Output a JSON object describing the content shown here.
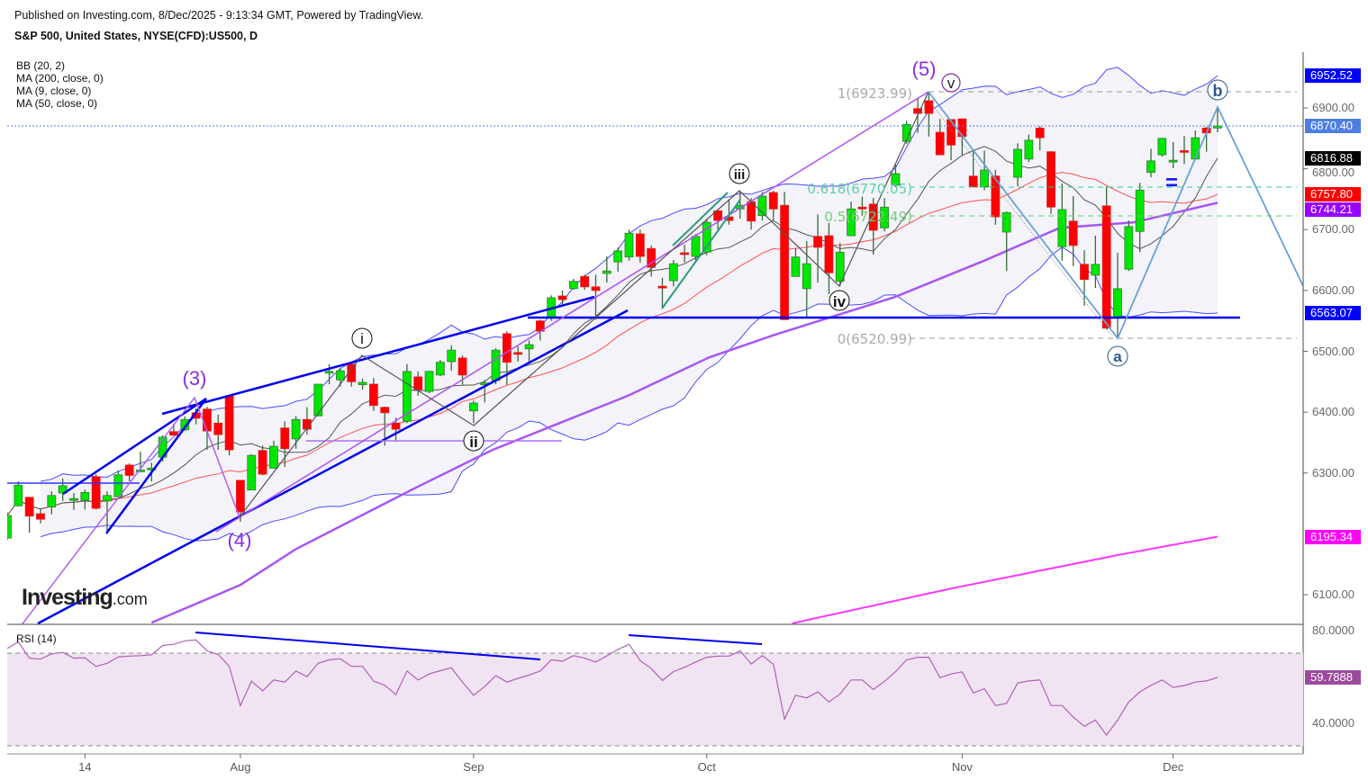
{
  "header": {
    "published": "Published on Investing.com, 8/Dec/2025 - 9:13:34 GMT, Powered by TradingView.",
    "symbol": "S&P 500, United States, NYSE(CFD):US500, D"
  },
  "legend": [
    "BB (20, 2)",
    "MA (200, close, 0)",
    "MA (9, close, 0)",
    "MA (50, close, 0)"
  ],
  "rsi_label": "RSI (14)",
  "logo": {
    "main": "Investing",
    "suffix": ".com"
  },
  "colors": {
    "up": "#00e600",
    "down": "#ff0000",
    "bb": "#4a4aff",
    "bb_fill": "#f3f3f9",
    "bb_basis": "#ff5050",
    "ma9": "#555555",
    "ma50": "#a855f7",
    "ma200": "#ff33ff",
    "rsi": "#b060b8",
    "rsi_fill": "#f1e4f2"
  },
  "price_axis": {
    "ticks": [
      "6900.00",
      "6800.00",
      "6700.00",
      "6600.00",
      "6500.00",
      "6400.00",
      "6300.00",
      "6100.00"
    ],
    "tick_values": [
      6900,
      6800,
      6700,
      6600,
      6500,
      6400,
      6300,
      6100
    ],
    "tags": [
      {
        "label": "6952.52",
        "value": 6952.52,
        "color": "#0000ff",
        "name": "bb-upper"
      },
      {
        "label": "6870.40",
        "value": 6870.4,
        "color": "#4f7ee3",
        "name": "last-price"
      },
      {
        "label": "6816.88",
        "value": 6816.88,
        "color": "#000000",
        "name": "ma9"
      },
      {
        "label": "6757.80",
        "value": 6757.8,
        "color": "#ff0000",
        "name": "bb-basis"
      },
      {
        "label": "6744.21",
        "value": 6744.21,
        "color": "#9900ff",
        "name": "ma50"
      },
      {
        "label": "6563.07",
        "value": 6563.07,
        "color": "#0000ff",
        "name": "bb-lower"
      },
      {
        "label": "6195.34",
        "value": 6195.34,
        "color": "#ff00ff",
        "name": "ma200"
      }
    ]
  },
  "rsi_axis": {
    "ticks": [
      "80.0000",
      "40.0000"
    ],
    "tick_values": [
      80,
      40
    ],
    "tag": {
      "label": "59.7888",
      "value": 59.7888,
      "color": "#9c4a9c"
    }
  },
  "x_axis": {
    "labels": [
      "14",
      "Aug",
      "Sep",
      "Oct",
      "Nov",
      "Dec"
    ],
    "label_index": [
      7,
      21,
      42,
      63,
      86,
      105
    ]
  },
  "annotations": {
    "waves": {
      "w3": "(3)",
      "w4": "(4)",
      "w5": "(5)",
      "i": "i",
      "ii": "ii",
      "iii": "iii",
      "iv": "iv",
      "v": "v",
      "a": "a",
      "b": "b",
      "eq": "="
    },
    "fib": {
      "f1": "1(6923.99)",
      "f618": "0.618(6770.05)",
      "f05": "0.5(6722.49)",
      "f0": "0(6520.99)"
    }
  },
  "chart_data": {
    "type": "candlestick",
    "title": "S&P 500, United States, NYSE(CFD):US500, D",
    "ylim": [
      6053,
      7000
    ],
    "rsi_ylim": [
      27,
      82
    ],
    "ohlc_fields": [
      "open",
      "high",
      "low",
      "close"
    ],
    "ohlc": [
      [
        6193,
        6235,
        6190,
        6230
      ],
      [
        6246,
        6286,
        6245,
        6280
      ],
      [
        6260,
        6261,
        6202,
        6229
      ],
      [
        6233,
        6242,
        6217,
        6224
      ],
      [
        6244,
        6270,
        6232,
        6263
      ],
      [
        6267,
        6291,
        6254,
        6279
      ],
      [
        6255,
        6267,
        6239,
        6258
      ],
      [
        6255,
        6273,
        6240,
        6268
      ],
      [
        6294,
        6298,
        6240,
        6242
      ],
      [
        6254,
        6270,
        6202,
        6263
      ],
      [
        6261,
        6304,
        6260,
        6297
      ],
      [
        6313,
        6316,
        6286,
        6296
      ],
      [
        6302,
        6335,
        6302,
        6305
      ],
      [
        6305,
        6317,
        6286,
        6308
      ],
      [
        6326,
        6362,
        6319,
        6359
      ],
      [
        6368,
        6381,
        6362,
        6362
      ],
      [
        6371,
        6393,
        6369,
        6388
      ],
      [
        6399,
        6406,
        6380,
        6390
      ],
      [
        6405,
        6409,
        6338,
        6369
      ],
      [
        6382,
        6396,
        6338,
        6363
      ],
      [
        6427,
        6427,
        6329,
        6338
      ],
      [
        6288,
        6288,
        6220,
        6236
      ],
      [
        6272,
        6331,
        6272,
        6329
      ],
      [
        6337,
        6345,
        6296,
        6298
      ],
      [
        6308,
        6353,
        6307,
        6344
      ],
      [
        6374,
        6385,
        6310,
        6340
      ],
      [
        6356,
        6394,
        6340,
        6388
      ],
      [
        6388,
        6408,
        6363,
        6372
      ],
      [
        6394,
        6446,
        6393,
        6446
      ],
      [
        6464,
        6479,
        6446,
        6467
      ],
      [
        6453,
        6473,
        6442,
        6468
      ],
      [
        6479,
        6482,
        6442,
        6450
      ],
      [
        6445,
        6455,
        6437,
        6449
      ],
      [
        6446,
        6456,
        6402,
        6411
      ],
      [
        6408,
        6409,
        6345,
        6399
      ],
      [
        6382,
        6391,
        6353,
        6372
      ],
      [
        6385,
        6479,
        6382,
        6467
      ],
      [
        6458,
        6467,
        6427,
        6437
      ],
      [
        6434,
        6468,
        6431,
        6467
      ],
      [
        6461,
        6486,
        6459,
        6482
      ],
      [
        6483,
        6510,
        6468,
        6502
      ],
      [
        6489,
        6493,
        6445,
        6461
      ],
      [
        6402,
        6419,
        6382,
        6415
      ],
      [
        6445,
        6453,
        6416,
        6448
      ],
      [
        6452,
        6505,
        6446,
        6502
      ],
      [
        6529,
        6533,
        6445,
        6482
      ],
      [
        6498,
        6508,
        6483,
        6495
      ],
      [
        6504,
        6518,
        6483,
        6511
      ],
      [
        6550,
        6552,
        6518,
        6533
      ],
      [
        6555,
        6592,
        6550,
        6588
      ],
      [
        6591,
        6600,
        6577,
        6585
      ],
      [
        6603,
        6619,
        6601,
        6615
      ],
      [
        6623,
        6626,
        6601,
        6606
      ],
      [
        6606,
        6626,
        6552,
        6600
      ],
      [
        6628,
        6656,
        6613,
        6632
      ],
      [
        6647,
        6671,
        6631,
        6665
      ],
      [
        6655,
        6700,
        6649,
        6694
      ],
      [
        6693,
        6700,
        6646,
        6656
      ],
      [
        6669,
        6674,
        6623,
        6638
      ],
      [
        6607,
        6621,
        6570,
        6606
      ],
      [
        6616,
        6650,
        6607,
        6644
      ],
      [
        6662,
        6675,
        6646,
        6660
      ],
      [
        6656,
        6693,
        6649,
        6689
      ],
      [
        6663,
        6718,
        6658,
        6712
      ],
      [
        6731,
        6734,
        6700,
        6715
      ],
      [
        6721,
        6749,
        6708,
        6715
      ],
      [
        6734,
        6762,
        6718,
        6740
      ],
      [
        6746,
        6752,
        6700,
        6714
      ],
      [
        6723,
        6762,
        6715,
        6755
      ],
      [
        6761,
        6764,
        6715,
        6734
      ],
      [
        6740,
        6762,
        6552,
        6552
      ],
      [
        6623,
        6669,
        6623,
        6655
      ],
      [
        6603,
        6681,
        6557,
        6644
      ],
      [
        6689,
        6725,
        6613,
        6671
      ],
      [
        6690,
        6711,
        6594,
        6629
      ],
      [
        6615,
        6678,
        6607,
        6663
      ],
      [
        6690,
        6746,
        6690,
        6734
      ],
      [
        6737,
        6754,
        6723,
        6734
      ],
      [
        6742,
        6752,
        6659,
        6699
      ],
      [
        6703,
        6752,
        6697,
        6737
      ],
      [
        6773,
        6807,
        6770,
        6792
      ],
      [
        6845,
        6879,
        6841,
        6873
      ],
      [
        6899,
        6915,
        6859,
        6891
      ],
      [
        6912,
        6924,
        6853,
        6891
      ],
      [
        6860,
        6882,
        6823,
        6823
      ],
      [
        6881,
        6881,
        6814,
        6839
      ],
      [
        6882,
        6882,
        6823,
        6853
      ],
      [
        6788,
        6829,
        6770,
        6770
      ],
      [
        6770,
        6830,
        6765,
        6798
      ],
      [
        6788,
        6798,
        6708,
        6721
      ],
      [
        6696,
        6730,
        6632,
        6728
      ],
      [
        6786,
        6842,
        6771,
        6832
      ],
      [
        6816,
        6856,
        6811,
        6847
      ],
      [
        6867,
        6870,
        6830,
        6851
      ],
      [
        6828,
        6829,
        6726,
        6737
      ],
      [
        6672,
        6776,
        6649,
        6733
      ],
      [
        6714,
        6755,
        6640,
        6674
      ],
      [
        6643,
        6666,
        6575,
        6618
      ],
      [
        6625,
        6690,
        6604,
        6643
      ],
      [
        6739,
        6771,
        6536,
        6538
      ],
      [
        6555,
        6662,
        6521,
        6603
      ],
      [
        6635,
        6715,
        6632,
        6705
      ],
      [
        6697,
        6777,
        6663,
        6765
      ],
      [
        6794,
        6833,
        6786,
        6813
      ],
      [
        6823,
        6851,
        6820,
        6850
      ],
      [
        6813,
        6844,
        6801,
        6814
      ],
      [
        6830,
        6854,
        6808,
        6829
      ],
      [
        6816,
        6863,
        6814,
        6851
      ],
      [
        6867,
        6869,
        6828,
        6859
      ],
      [
        6867,
        6900,
        6860,
        6870.4
      ]
    ],
    "ma50_points": [
      [
        13,
        6054
      ],
      [
        21,
        6116
      ],
      [
        26,
        6175
      ],
      [
        36.7,
        6275
      ],
      [
        43.7,
        6338
      ],
      [
        55.9,
        6427
      ],
      [
        63.2,
        6490
      ],
      [
        69.1,
        6527
      ],
      [
        79.9,
        6589
      ],
      [
        88,
        6649
      ],
      [
        94.8,
        6703
      ],
      [
        101.5,
        6712
      ],
      [
        109,
        6744.21
      ]
    ],
    "ma200_points": [
      [
        70.7,
        6053
      ],
      [
        85,
        6110
      ],
      [
        100,
        6165
      ],
      [
        109,
        6195.34
      ]
    ],
    "rsi": [
      72.3,
      75.1,
      68.1,
      67.7,
      70,
      70.6,
      68.1,
      68.3,
      64.6,
      65.9,
      68.7,
      69.0,
      69.2,
      69.6,
      73.6,
      74.1,
      75.6,
      76.0,
      71.3,
      69.7,
      64.6,
      47.6,
      58.2,
      54.0,
      58.7,
      57.8,
      62.6,
      60.1,
      65.9,
      67.4,
      67.9,
      64.6,
      64.6,
      58.2,
      56.4,
      52.4,
      62.6,
      58.7,
      61.3,
      62.7,
      64.0,
      57.8,
      52.1,
      55.9,
      60.6,
      57.8,
      59.4,
      60.8,
      62.6,
      67.4,
      66.8,
      69.2,
      68.1,
      66.5,
      69.1,
      71.9,
      74.1,
      67.1,
      63.6,
      58.5,
      62.3,
      64.2,
      66.5,
      68.5,
      69.0,
      69.0,
      71.3,
      65.6,
      69.2,
      65.5,
      41.8,
      52.1,
      51.0,
      53.6,
      49.2,
      52.7,
      58.7,
      58.7,
      54.6,
      58.1,
      62.3,
      67.4,
      68.5,
      68.5,
      59.7,
      61.3,
      62.2,
      53.1,
      54.9,
      47.7,
      48.6,
      57.4,
      58.3,
      58.7,
      47.7,
      47.7,
      42.7,
      38.7,
      41.4,
      34.9,
      41.4,
      49.2,
      53.6,
      56.4,
      58.7,
      55.5,
      56.3,
      57.8,
      58.3,
      59.79
    ],
    "rsi_levels": [
      70,
      30
    ]
  }
}
